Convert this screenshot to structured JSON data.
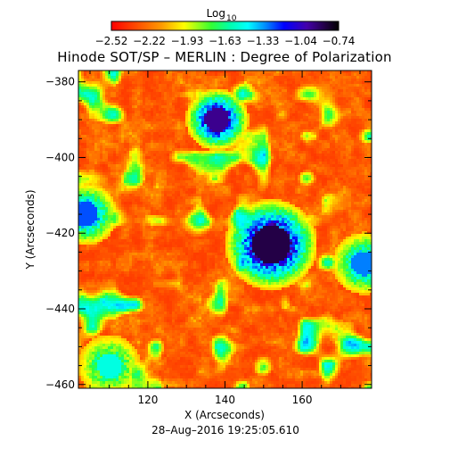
{
  "chart_data": {
    "type": "heatmap",
    "title": "Hinode SOT/SP – MERLIN : Degree of Polarization",
    "xlabel": "X (Arcseconds)",
    "ylabel": "Y (Arcseconds)",
    "xlim": [
      102,
      178
    ],
    "ylim": [
      -461,
      -377
    ],
    "x_ticks": [
      120,
      140,
      160
    ],
    "x_tick_labels": [
      "120",
      "140",
      "160"
    ],
    "y_ticks": [
      -380,
      -400,
      -420,
      -440,
      -460
    ],
    "y_tick_labels": [
      "−380",
      "−400",
      "−420",
      "−440",
      "−460"
    ],
    "colorbar": {
      "label_main": "Log",
      "label_sub": "10",
      "range": [
        -2.52,
        -0.74
      ],
      "tick_labels": [
        "−2.52",
        "−2.22",
        "−1.93",
        "−1.63",
        "−1.33",
        "−1.04",
        "−0.74"
      ],
      "colormap": "rainbow (red → yellow → green → cyan → blue → purple → black)"
    },
    "features": [
      {
        "x": 152,
        "y": -423,
        "value": -0.85
      },
      {
        "x": 138,
        "y": -390,
        "value": -0.95
      },
      {
        "x": 104,
        "y": -415,
        "value": -1.25
      },
      {
        "x": 176,
        "y": -428,
        "value": -1.3
      },
      {
        "x": 110,
        "y": -455,
        "value": -1.5
      }
    ],
    "timestamp": "28–Aug–2016 19:25:05.610"
  }
}
